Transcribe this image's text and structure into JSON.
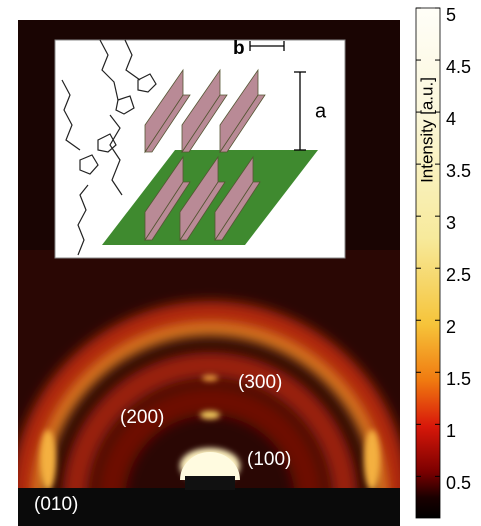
{
  "chart_data": {
    "type": "colorbar-image",
    "colorbar_label": "Intensity [a.u.]",
    "ylim": [
      0.1,
      5
    ],
    "yticks": [
      0.5,
      1,
      1.5,
      2,
      2.5,
      3,
      3.5,
      4,
      4.5,
      5
    ],
    "annotations": [
      "(300)",
      "(200)",
      "(100)",
      "(010)"
    ],
    "inset_labels": [
      "a",
      "b"
    ]
  }
}
